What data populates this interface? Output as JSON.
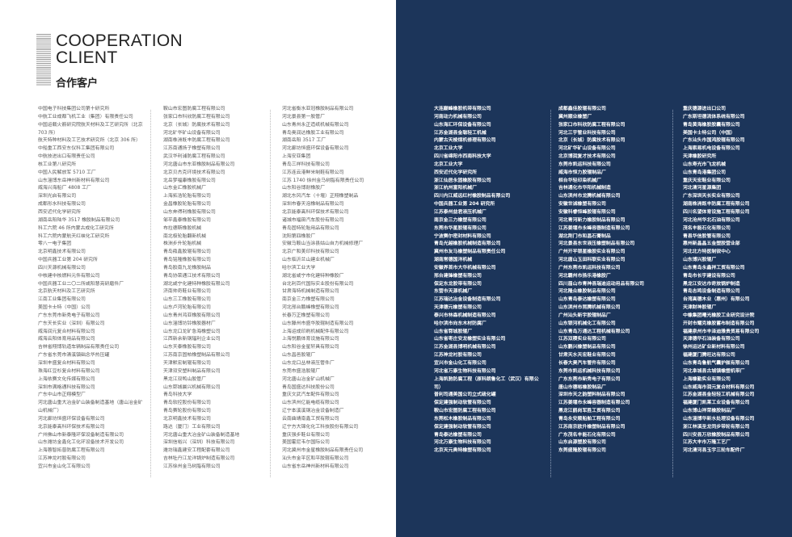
{
  "header": {
    "title_en_line1": "COOPERATION",
    "title_en_line2": "CLIENT",
    "title_cn": "合作客户"
  },
  "colors": {
    "right_page_bg": "#1c355a",
    "left_page_bg": "#ffffff"
  },
  "columns": [
    [
      "中国电子科技集团公司第十研究所",
      "中航工业成都飞机工业（集团）有限责任公司",
      "中国运载火箭研究院航天材料及工艺研究所（北京 703 所）",
      "航天特种材料及工艺技术研究所（北京 306 所）",
      "中船重工西安东仪科工集团有限公司",
      "中航技进出口有限责任公司",
      "核工业第八研究所",
      "中国人民解放军 5710 工厂",
      "山东淄博东岳神州新材料有限公司",
      "威海兴海船厂 4808 工厂",
      "深圳光启有限公司",
      "成都形水科技有限公司",
      "西安近代化学研究所",
      "湖南岳阳陆华 3517 橡胶制品有限公司",
      "科工六院 46 所内蒙古成化工研究所",
      "科工六院内蒙航天红峡化工研究所",
      "零八一电子集团",
      "北京明鑫技术有限公司",
      "中国兵器工业第 204 研究所",
      "四川天源机械有限公司",
      "中核建中核燃料元件有限公司",
      "中国兵器工业二〇二所咸阳慧亮研磨件厂",
      "北京航天材料及工艺研究所",
      "江南工业集团有限公司",
      "美国卡士特（中国）公司",
      "广东东莞市新秀电子有限公司",
      "广东天长实业（深圳）有限公司",
      "威海润元复合材料有限公司",
      "威海云阳体育用品有限公司",
      "吉林省翔博轨道车辆制品有限责任公司",
      "广东省东莞市清溪镇础念华热压罐",
      "深圳丰盛复合材料有限公司",
      "珠海红豆杉复合材料有限公司",
      "上海依赛文化传媒有限公司",
      "深圳市满格通科技有限公司",
      "广东中山市正翔模型厂",
      "河北唐山重大冶金矿山装备制造基地（唐山冶金矿山机械厂）",
      "河北廊坊恒盛环保设备有限公司",
      "北京能泰高科环保技术有限公司",
      "广州佛山市新泰隆环保设备制造有限公司",
      "山东潍坊金鑫化工化环设备技术开发公司",
      "上海蓉智拓普防腐工程有限公司",
      "江苏神龙衬胶有限公司",
      "宜兴市金山化工有限公司"
    ],
    [
      "鞍山市宏图防腐工程有限公司",
      "张家口市科欣防腐工程有限公司",
      "北京（长城）防腐技术有限公司",
      "河北矿华矿山设备有限公司",
      "湖南株洲既丰防腐工程有限公司",
      "江苏南通扬子橡塑有限公司",
      "武汉华利浦防腐工程有限公司",
      "河北唐山市东亚橡胶制品有限公司",
      "北京贝杰克环境技术有限公司",
      "北岳梦福康橡胶有限公司",
      "山东金汇橡胶机械厂",
      "上海拓浩轮胎有限公司",
      "金昌橡胶轮胎有限公司",
      "山东奔得利橡胶有限公司",
      "邹平鑫泰橡胶有限公司",
      "布拉德斯橡胶机械",
      "南北极轮胎翻新机械",
      "株洲步升轮胎机械",
      "青岛鼎鑫胶辊有限公司",
      "青岛铭隆橡胶有限公司",
      "青岛胶南九龙橡胶制品",
      "青岛协荣通江技术有限公司",
      "湖北咸宁化建特种橡胶有限公司",
      "济南帅奇鞋业有限公司",
      "山东三工橡胶有限公司",
      "山东卢河轮胎有限公司",
      "山东青州鸿亚橡胶有限公司",
      "山东淄博坊铃橡胶器材厂",
      "山东龙口龙矿急海橡塑公司",
      "江西新余新钢辐利企业公司",
      "山东天泰橡胶有限公司",
      "江苏南京固帕橡塑制品有限公司",
      "天津默宏制辊有限公司",
      "天津双安塑料制品有限公司",
      "黑龙江双鸭山胶管厂",
      "山东郓城晨兴机械有限公司",
      "青岛科技大学",
      "青岛软控股份有限公司",
      "青岛赛轮股份有限公司",
      "北京明鑫技术有限公司",
      "路达（厦门）工业有限公司",
      "河北唐山重大冶金矿山装备制造基地",
      "深圳信裕兴（深圳）科技有限公司",
      "潍坊瑞鑫建安工程配套有限公司",
      "吉林牡丹江龙洋锅炉制造有限公司",
      "江苏徐州金马树脂有限公司"
    ],
    [
      "河北省衡水亚冠橡胶制品有限公司",
      "河北景县第一胶管厂",
      "山东青州永正造纸机械有限公司",
      "青岛奥润达橡胶工业有限公司",
      "湖南岳阳 3517 工厂",
      "河北廊坊恒盛环保设备有限公司",
      "上海安亚集团",
      "青岛三祥科技有限公司",
      "江苏连云港鲜米制鞋有限公司",
      "江苏 1740 徐州金马树脂有限责任公司",
      "山东阳谷博耐橡胶厂",
      "湖北东风汽车（十堰）正翔橡塑制品",
      "深圳市春天泡橡制品有限公司",
      "北京能泰高科环保技术有限公司",
      "诸城市福田汽车股份有限公司",
      "青岛固特轮胎用品有限公司",
      "沈阳第四橡胶厂",
      "安徽马鞍山当涂县姑山自力机械修理厂",
      "北京广和美印科技有限公司",
      "山东临沂兰山建业机械厂",
      "哈尔滨工业大学",
      "湖北省咸宁市化建特种橡胶厂",
      "台北利百代国际实业股份有限公司",
      "甘肃海特机械制造有限公司",
      "南京金三力橡塑有限公司",
      "河北邢台鹏峰橡塑有限公司",
      "长春万正橡塑有限公司",
      "山东滕州市盛华胶辊制造有限公司",
      "上海运成印刷机械配件有限公司",
      "上海悦鹏体育设施有限公司",
      "山东阳谷金星轩具有限公司",
      "山东昌邑胶辊厂",
      "山东龙口丛林液压管件厂",
      "东莞市盛浩胶辊厂",
      "河北唐山冶金矿山机械厂",
      "青岛国盛达科技股份公司",
      "重庆文武汽车配件有限公司",
      "山东滨州亿能电缆有限公司",
      "辽宁本溪溪钢冶金设备制造厂",
      "云南曲靖南鑫工贸有限公司",
      "辽宁方大锦化化工科技股份有限公司",
      "重庆强步鞋业有限公司",
      "美国霍尼韦尔国际公司",
      "河北冀州市金星橡胶制品有限责任公司",
      "汕头市金平区和平胶辊有限公司",
      "山东省东岳神州新材料有限公司"
    ],
    [
      "大连巅峰橡胶机带有限公司",
      "河南动力机械有限公司",
      "山东海汇环保设备有限公司",
      "江苏金湖县金聪轻工机械",
      "内蒙古天棱煤机修理有限公司",
      "北京工业大学",
      "四川省绵阳市西南科技大学",
      "北京工业大学",
      "西安近代化学研究所",
      "浙江仙居永固橡胶有限公司",
      "浙江杭州富阳机械厂",
      "四川内江威远红村橡胶制品有限公司",
      "中国兵器工业第 204 研究所",
      "江苏泰州益君液压机械厂",
      "南京金三力橡塑有限公司",
      "东莞市华星胶辊有限公司",
      "宁波赛尔密封材料有限公司",
      "青岛光越橡胶机械制造有限公司",
      "冀州市友马橡塑制品有限责任公司",
      "湖南常德国洋机械",
      "安徽界首市大华机械有限公司",
      "邢台建锋橡塑有限公司",
      "保定东龙胶带有限公司",
      "东营市天源机械厂",
      "江苏瑞达冶金设备制造有限公司",
      "天津德元橡塑有限公司",
      "泰兴市林森机械制造有限公司",
      "哈尔滨市向东木材防腐厂",
      "山东省郓城胶辊厂",
      "山东省枣庄安龙橡塑实业有限公司",
      "江苏金湖县博明机械有限公司",
      "江苏神龙衬胶有限公司",
      "宜兴市金山化工有限公司",
      "河北省万康生物科技有限公司",
      "上海凯驰防腐工程（原科朗鲁化工（武汉）有限公司）",
      "普利司通美国公司立式硫化罐",
      "保定建强制动软管有限公司",
      "鞍山市宏图防腐工程有限公司",
      "东莞松木橡胶制品有限公司",
      "保定建强制动软管有限公司",
      "青岛泰达橡塑有限公司",
      "河北万康生物科技有限公司",
      "北京天元奥特橡塑有限公司"
    ],
    [
      "成都鑫佳胶辊有限公司",
      "冀州顺业橡塑厂",
      "张家口市科欣防腐工程有限公司",
      "河北三宇管业科技有限公司",
      "北京（长城）防腐技术有限公司",
      "河北矿华矿山设备有限公司",
      "北京博润复才技术有限公司",
      "东莞市凯运科技有限公司",
      "威海市恒力胶辊制品厂",
      "桓台华轻印染机械厂",
      "吉林通化市华阳机械制造",
      "山东滨州市龙腾机械有限公司",
      "安徽世诚橡塑有限公司",
      "安徽科睿恒峰胶辊有限公司",
      "河北青河新力橡胶制品有限公司",
      "江苏姜堰市永峰容器制造有限公司",
      "湖北荆门市和昌石膏制品",
      "河北景县东世液压橡塑制品有限公司",
      "广州开平银星橡胶实业有限公司",
      "河北唐山玉田科联实业有限公司",
      "广州东莞市凯运科技有限公司",
      "河北霸州市扬乐港橡胶厂",
      "四川眉山市青神县瑞迪运动用品有限公司",
      "河北隆众橡胶制品有限公司",
      "山东青岛泰达橡塑有限公司",
      "山东滨州市昆腾机械有限公司",
      "广州汕头新宇胶辊制品厂",
      "山东银河机械化工有限公司",
      "山东青岛万通达工程机械有限公司",
      "江苏双稷实业有限公司",
      "山东鹏兴橡塑制品有限公司",
      "甘肃天水天宏鞋业有限公司",
      "长春大昊汽车管件有限公司",
      "东莞市凯运机械科技有限公司",
      "广东东莞市新秀电子有限公司",
      "唐山市德裕橡胶制品厂",
      "深圳市天之韵塑料制品有限公司",
      "江苏姜堰市永峰容器制造有限公司",
      "黑龙江鹤岗军胜工贸有限公司",
      "青岛永安顺船舶工程有限公司",
      "江苏南京欧升橡塑制品有限公司",
      "广东茂名丰能石化有限公司",
      "山东启源塑胶有限公司",
      "东莞盛隆胶辊有限公司"
    ],
    [
      "重庆德源进出口公司",
      "广东斯坦德流体系统有限公司",
      "青岛黄海橡胶胶囊有限公司",
      "美国卡士特公司（中国）",
      "广东汕头市国鸿胶辊有限公司",
      "上海索易机电设备有限公司",
      "天津橡胶研究所",
      "山东寿光市飞龙机械",
      "山东青岛港集团公司",
      "重庆天宏鞋业有限公司",
      "河北清河星源集团",
      "广东深圳天长实业有限公司",
      "湖南株洲既丰防腐工程有限公司",
      "四川名望体育设施工程有限公司",
      "河北沧州华北石油有限公司",
      "茂名丰能石化有限公司",
      "青县华信胶管有限公司",
      "惠州新晶晶五金塑胶营业部",
      "河北北方特医制锐中心",
      "山东博兴胶辊厂",
      "山东青岛永鑫祥工贸有限公司",
      "青岛市长宇建设有限公司",
      "黑龙江安达市奇放锅炉制造",
      "青岛志鸣设备制造有限公司",
      "台湾高德木业（惠州）有限公司",
      "天津财神胶辊厂",
      "中橡集团曙光橡胶工业研究设计院",
      "开封市耀克橡胶蓄布制造有限公司",
      "福建泉州市丰泽迪雅贵贸易有限公司",
      "天津德华石油装备有限公司",
      "徐州运达矿业新材料有限公司",
      "福建厦门腾旺达有限公司",
      "山东青岛鲁航气囊护舷有限公司",
      "河北阜城县古城镇橡塑机带厂",
      "上海橡勤实业有限公司",
      "山东威海市润元复合材料有限公司",
      "江苏金湖县金轻轻工机械有限公司",
      "福建厦门凯莱工业设备有限公司",
      "山东博山祥荣橡胶制品厂",
      "山东淄博华新水处理设备有限公司",
      "浙江林溪圣龙同步带轮有限公司",
      "四川安县万欣橡胶制品有限公司",
      "江苏大丰市万隆工艺厂",
      "河北清河县玉宇三轮车配件厂"
    ]
  ]
}
